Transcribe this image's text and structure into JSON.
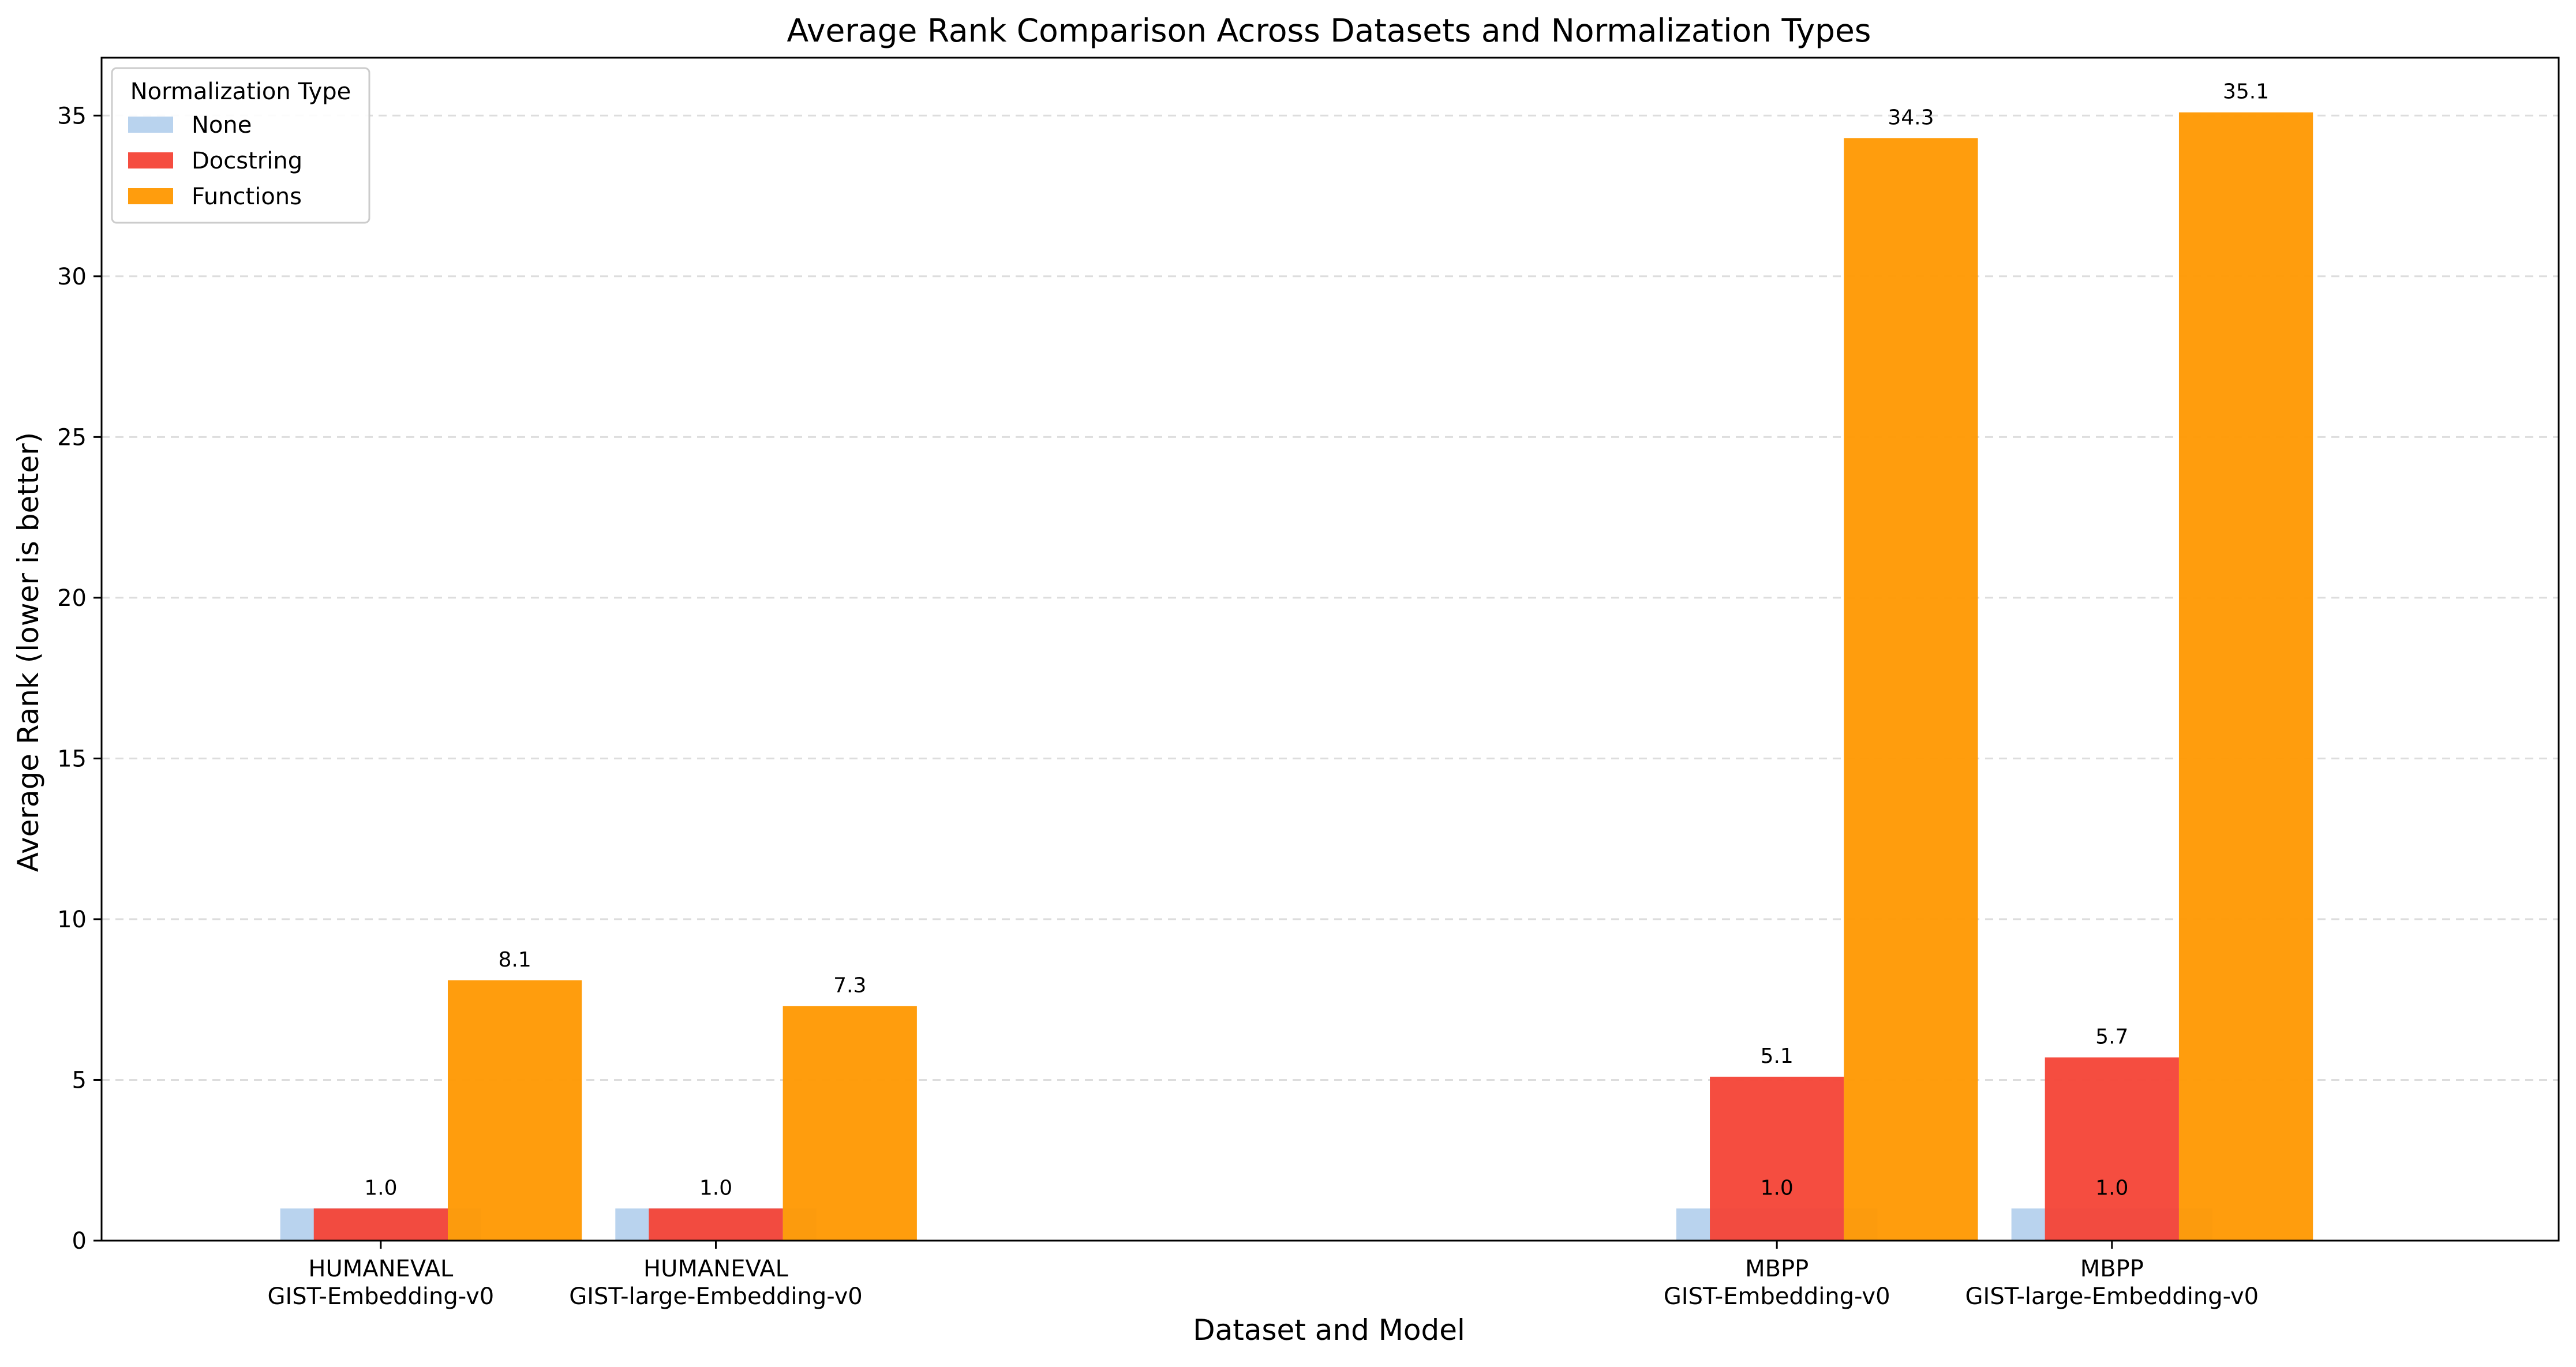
{
  "colors": {
    "None": "#a1c4e8",
    "Docstring": "#f44336",
    "Functions": "#ff9800",
    "grid": "#dddddd",
    "axis": "#000000"
  },
  "chart_data": {
    "type": "bar",
    "title": "Average Rank Comparison Across Datasets and Normalization Types",
    "xlabel": "Dataset and Model",
    "ylabel": "Average Rank (lower is better)",
    "ylim": [
      0,
      36.8
    ],
    "yticks": [
      0,
      5,
      10,
      15,
      20,
      25,
      30,
      35
    ],
    "grid": "y-dashed",
    "legend": {
      "title": "Normalization Type",
      "placement": "top-left"
    },
    "categories": [
      [
        "HUMANEVAL",
        "GIST-Embedding-v0"
      ],
      [
        "HUMANEVAL",
        "GIST-large-Embedding-v0"
      ],
      [
        "MBPP",
        "GIST-Embedding-v0"
      ],
      [
        "MBPP",
        "GIST-large-Embedding-v0"
      ]
    ],
    "category_positions": [
      0,
      0.6,
      2.5,
      3.1
    ],
    "bar_width": 0.24,
    "series": [
      {
        "name": "None",
        "values": [
          1.0,
          1.0,
          1.0,
          1.0
        ],
        "offset": 0,
        "width": 0.36,
        "labels": [
          false,
          false,
          true,
          true
        ]
      },
      {
        "name": "Docstring",
        "values": [
          1.0,
          1.0,
          5.1,
          5.7
        ],
        "offset": 0,
        "width": 0.24,
        "labels": [
          true,
          true,
          true,
          true
        ]
      },
      {
        "name": "Functions",
        "values": [
          8.1,
          7.3,
          34.3,
          35.1
        ],
        "offset": 0.24,
        "width": 0.24,
        "labels": [
          true,
          true,
          true,
          true
        ]
      }
    ],
    "data_label_text": {
      "None": [
        "1.0",
        "1.0",
        "1.0",
        "1.0"
      ],
      "Docstring": [
        "1.0",
        "1.0",
        "5.1",
        "5.7"
      ],
      "Functions": [
        "8.1",
        "7.3",
        "34.3",
        "35.1"
      ]
    }
  }
}
